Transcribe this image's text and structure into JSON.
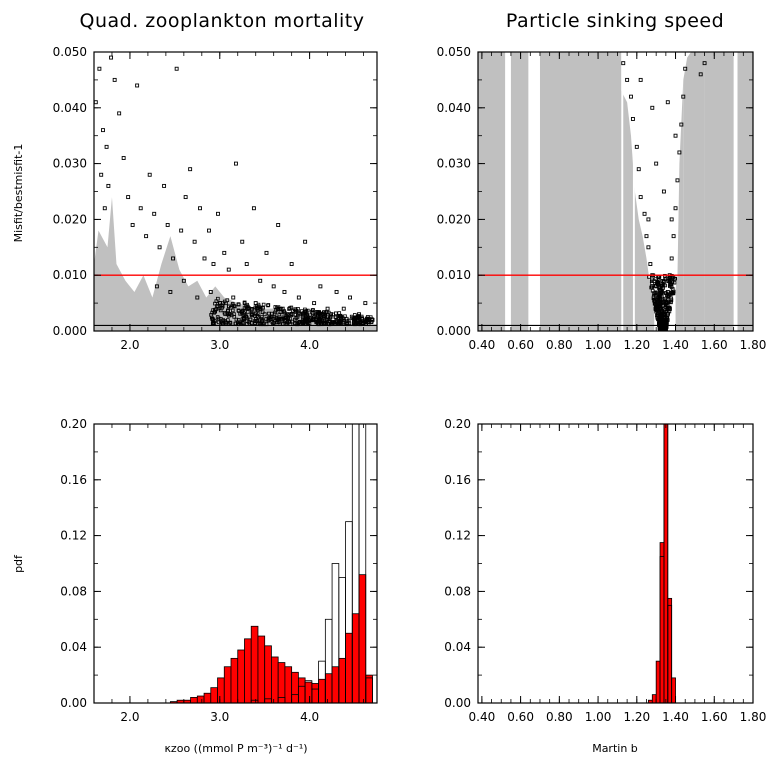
{
  "panels": {
    "top_left": {
      "title": "Quad. zooplankton mortality",
      "ylabel": "Misfit/bestmisfit-1"
    },
    "top_right": {
      "title": "Particle sinking speed"
    },
    "bottom_left": {
      "ylabel": "pdf",
      "xlabel": "κzoo ((mmol P m⁻³)⁻¹ d⁻¹)"
    },
    "bottom_right": {
      "xlabel": "Martin b"
    }
  },
  "chart_data": [
    {
      "type": "scatter",
      "title": "Quad. zooplankton mortality",
      "xlabel": "",
      "ylabel": "Misfit/bestmisfit-1",
      "xlim": [
        1.6,
        4.75
      ],
      "ylim": [
        0,
        0.05
      ],
      "xticks": [
        "2.0",
        "3.0",
        "4.0"
      ],
      "yticks": [
        "0.000",
        "0.010",
        "0.020",
        "0.030",
        "0.040",
        "0.050"
      ],
      "reference_line": {
        "y": 0.01,
        "color": "#ff0000"
      },
      "baseline": 0.001,
      "shaded_envelope_color": "#c0c0c0",
      "envelope": [
        [
          1.6,
          0.012
        ],
        [
          1.65,
          0.018
        ],
        [
          1.75,
          0.015
        ],
        [
          1.8,
          0.024
        ],
        [
          1.85,
          0.012
        ],
        [
          1.95,
          0.009
        ],
        [
          2.05,
          0.007
        ],
        [
          2.15,
          0.01
        ],
        [
          2.25,
          0.006
        ],
        [
          2.35,
          0.012
        ],
        [
          2.45,
          0.017
        ],
        [
          2.55,
          0.011
        ],
        [
          2.65,
          0.008
        ],
        [
          2.75,
          0.009
        ],
        [
          2.85,
          0.006
        ],
        [
          2.95,
          0.008
        ],
        [
          3.05,
          0.006
        ],
        [
          3.2,
          0.005
        ],
        [
          3.4,
          0.004
        ],
        [
          3.6,
          0.004
        ],
        [
          3.8,
          0.003
        ],
        [
          4.0,
          0.002
        ],
        [
          4.2,
          0.0015
        ],
        [
          4.5,
          0.0012
        ],
        [
          4.75,
          0.0012
        ]
      ],
      "points": [
        [
          1.62,
          0.041
        ],
        [
          1.66,
          0.047
        ],
        [
          1.7,
          0.036
        ],
        [
          1.74,
          0.033
        ],
        [
          1.79,
          0.049
        ],
        [
          1.68,
          0.028
        ],
        [
          1.76,
          0.026
        ],
        [
          1.83,
          0.045
        ],
        [
          1.72,
          0.022
        ],
        [
          1.88,
          0.039
        ],
        [
          1.93,
          0.031
        ],
        [
          1.98,
          0.024
        ],
        [
          2.03,
          0.019
        ],
        [
          2.08,
          0.044
        ],
        [
          2.12,
          0.022
        ],
        [
          2.18,
          0.017
        ],
        [
          2.22,
          0.028
        ],
        [
          2.27,
          0.021
        ],
        [
          2.33,
          0.015
        ],
        [
          2.38,
          0.026
        ],
        [
          2.42,
          0.019
        ],
        [
          2.48,
          0.013
        ],
        [
          2.52,
          0.047
        ],
        [
          2.57,
          0.018
        ],
        [
          2.62,
          0.024
        ],
        [
          2.67,
          0.029
        ],
        [
          2.72,
          0.016
        ],
        [
          2.78,
          0.022
        ],
        [
          2.83,
          0.013
        ],
        [
          2.88,
          0.018
        ],
        [
          2.93,
          0.012
        ],
        [
          2.98,
          0.021
        ],
        [
          3.05,
          0.014
        ],
        [
          3.1,
          0.011
        ],
        [
          3.18,
          0.03
        ],
        [
          3.25,
          0.016
        ],
        [
          3.3,
          0.012
        ],
        [
          3.38,
          0.022
        ],
        [
          3.45,
          0.009
        ],
        [
          3.52,
          0.014
        ],
        [
          3.6,
          0.008
        ],
        [
          3.65,
          0.019
        ],
        [
          3.72,
          0.007
        ],
        [
          3.8,
          0.012
        ],
        [
          3.88,
          0.006
        ],
        [
          3.95,
          0.016
        ],
        [
          4.05,
          0.005
        ],
        [
          4.12,
          0.008
        ],
        [
          4.2,
          0.004
        ],
        [
          4.3,
          0.007
        ],
        [
          4.38,
          0.004
        ],
        [
          4.45,
          0.006
        ],
        [
          4.55,
          0.003
        ],
        [
          4.62,
          0.005
        ],
        [
          4.7,
          0.002
        ],
        [
          2.3,
          0.008
        ],
        [
          2.45,
          0.007
        ],
        [
          2.6,
          0.009
        ],
        [
          2.75,
          0.006
        ],
        [
          2.9,
          0.007
        ],
        [
          3.0,
          0.005
        ],
        [
          3.15,
          0.006
        ],
        [
          3.3,
          0.004
        ],
        [
          3.4,
          0.005
        ],
        [
          3.5,
          0.003
        ],
        [
          3.7,
          0.004
        ],
        [
          3.9,
          0.003
        ],
        [
          4.1,
          0.002
        ],
        [
          4.35,
          0.0025
        ],
        [
          4.6,
          0.0015
        ]
      ],
      "dense_cluster": {
        "x_range": [
          2.9,
          4.7
        ],
        "y_range": [
          0.0012,
          0.006
        ],
        "count": 500
      }
    },
    {
      "type": "scatter",
      "title": "Particle sinking speed",
      "xlabel": "",
      "ylabel": "",
      "xlim": [
        0.38,
        1.8
      ],
      "ylim": [
        0,
        0.05
      ],
      "xticks": [
        "0.40",
        "0.60",
        "0.80",
        "1.00",
        "1.20",
        "1.40",
        "1.60",
        "1.80"
      ],
      "yticks": [
        "0.000",
        "0.010",
        "0.020",
        "0.030",
        "0.040",
        "0.050"
      ],
      "reference_line": {
        "y": 0.01,
        "color": "#ff0000"
      },
      "baseline": 0.001,
      "shaded_envelope_color": "#c0c0c0",
      "gray_bands": [
        [
          0.38,
          0.52
        ],
        [
          0.55,
          0.64
        ],
        [
          0.7,
          1.12
        ],
        [
          1.13,
          1.18
        ],
        [
          1.19,
          1.29
        ],
        [
          1.4,
          1.44
        ],
        [
          1.44,
          1.55
        ],
        [
          1.55,
          1.7
        ],
        [
          1.72,
          1.8
        ]
      ],
      "white_gaps": [
        [
          0.52,
          0.55
        ],
        [
          0.64,
          0.7
        ],
        [
          1.7,
          1.72
        ]
      ],
      "envelope": [
        [
          1.12,
          0.05
        ],
        [
          1.12,
          0.043
        ],
        [
          1.15,
          0.041
        ],
        [
          1.17,
          0.035
        ],
        [
          1.19,
          0.025
        ],
        [
          1.21,
          0.02
        ],
        [
          1.23,
          0.017
        ],
        [
          1.25,
          0.013
        ],
        [
          1.27,
          0.008
        ],
        [
          1.29,
          0.004
        ],
        [
          1.31,
          0.002
        ],
        [
          1.33,
          0.0
        ],
        [
          1.35,
          0.0
        ],
        [
          1.37,
          0.002
        ],
        [
          1.39,
          0.005
        ],
        [
          1.41,
          0.01
        ],
        [
          1.42,
          0.03
        ],
        [
          1.44,
          0.045
        ],
        [
          1.46,
          0.049
        ],
        [
          1.48,
          0.05
        ]
      ],
      "points": [
        [
          1.13,
          0.048
        ],
        [
          1.15,
          0.045
        ],
        [
          1.17,
          0.042
        ],
        [
          1.18,
          0.038
        ],
        [
          1.2,
          0.033
        ],
        [
          1.21,
          0.029
        ],
        [
          1.22,
          0.024
        ],
        [
          1.24,
          0.021
        ],
        [
          1.25,
          0.017
        ],
        [
          1.26,
          0.015
        ],
        [
          1.27,
          0.012
        ],
        [
          1.28,
          0.01
        ],
        [
          1.3,
          0.008
        ],
        [
          1.31,
          0.006
        ],
        [
          1.32,
          0.004
        ],
        [
          1.33,
          0.002
        ],
        [
          1.34,
          0.003
        ],
        [
          1.35,
          0.005
        ],
        [
          1.36,
          0.007
        ],
        [
          1.37,
          0.01
        ],
        [
          1.38,
          0.013
        ],
        [
          1.39,
          0.017
        ],
        [
          1.4,
          0.022
        ],
        [
          1.41,
          0.027
        ],
        [
          1.42,
          0.032
        ],
        [
          1.43,
          0.037
        ],
        [
          1.44,
          0.042
        ],
        [
          1.45,
          0.047
        ],
        [
          1.22,
          0.045
        ],
        [
          1.28,
          0.04
        ],
        [
          1.36,
          0.041
        ],
        [
          1.4,
          0.035
        ],
        [
          1.3,
          0.03
        ],
        [
          1.34,
          0.025
        ],
        [
          1.26,
          0.02
        ],
        [
          1.38,
          0.02
        ],
        [
          1.53,
          0.046
        ],
        [
          1.55,
          0.048
        ]
      ],
      "dense_cluster": {
        "x_range": [
          1.26,
          1.4
        ],
        "y_range": [
          0.0,
          0.01
        ],
        "count": 400
      }
    },
    {
      "type": "bar",
      "xlabel": "κzoo ((mmol P m⁻³)⁻¹ d⁻¹)",
      "ylabel": "pdf",
      "xlim": [
        1.6,
        4.75
      ],
      "ylim": [
        0,
        0.2
      ],
      "xticks": [
        "2.0",
        "3.0",
        "4.0"
      ],
      "yticks": [
        "0.00",
        "0.04",
        "0.08",
        "0.12",
        "0.16",
        "0.20"
      ],
      "bin_width": 0.075,
      "series": [
        {
          "fill": "#ff0000",
          "bins": [
            [
              2.45,
              0.001
            ],
            [
              2.525,
              0.002
            ],
            [
              2.6,
              0.002
            ],
            [
              2.675,
              0.004
            ],
            [
              2.75,
              0.005
            ],
            [
              2.825,
              0.007
            ],
            [
              2.9,
              0.011
            ],
            [
              2.975,
              0.018
            ],
            [
              3.05,
              0.026
            ],
            [
              3.125,
              0.032
            ],
            [
              3.2,
              0.038
            ],
            [
              3.275,
              0.046
            ],
            [
              3.35,
              0.055
            ],
            [
              3.425,
              0.048
            ],
            [
              3.5,
              0.041
            ],
            [
              3.575,
              0.033
            ],
            [
              3.65,
              0.029
            ],
            [
              3.725,
              0.026
            ],
            [
              3.8,
              0.022
            ],
            [
              3.875,
              0.018
            ],
            [
              3.95,
              0.015
            ],
            [
              4.025,
              0.014
            ],
            [
              4.1,
              0.017
            ],
            [
              4.175,
              0.021
            ],
            [
              4.25,
              0.026
            ],
            [
              4.325,
              0.032
            ],
            [
              4.4,
              0.05
            ],
            [
              4.475,
              0.064
            ],
            [
              4.55,
              0.092
            ],
            [
              4.625,
              0.02
            ]
          ]
        },
        {
          "fill": "none",
          "bins": [
            [
              3.35,
              0.002
            ],
            [
              3.5,
              0.003
            ],
            [
              3.65,
              0.004
            ],
            [
              3.8,
              0.006
            ],
            [
              3.875,
              0.012
            ],
            [
              3.95,
              0.016
            ],
            [
              4.025,
              0.01
            ],
            [
              4.1,
              0.03
            ],
            [
              4.175,
              0.06
            ],
            [
              4.25,
              0.1
            ],
            [
              4.325,
              0.09
            ],
            [
              4.4,
              0.13
            ],
            [
              4.475,
              0.2
            ],
            [
              4.55,
              0.2
            ],
            [
              4.625,
              0.018
            ]
          ]
        }
      ]
    },
    {
      "type": "bar",
      "xlabel": "Martin b",
      "ylabel": "",
      "xlim": [
        0.38,
        1.8
      ],
      "ylim": [
        0,
        0.2
      ],
      "xticks": [
        "0.40",
        "0.60",
        "0.80",
        "1.00",
        "1.20",
        "1.40",
        "1.60",
        "1.80"
      ],
      "yticks": [
        "0.00",
        "0.04",
        "0.08",
        "0.12",
        "0.16",
        "0.20"
      ],
      "bin_width": 0.02,
      "series": [
        {
          "fill": "#ff0000",
          "bins": [
            [
              1.26,
              0.002
            ],
            [
              1.28,
              0.006
            ],
            [
              1.3,
              0.03
            ],
            [
              1.32,
              0.115
            ],
            [
              1.34,
              0.2
            ],
            [
              1.36,
              0.075
            ],
            [
              1.38,
              0.018
            ]
          ]
        },
        {
          "fill": "none",
          "bins": [
            [
              1.32,
              0.105
            ],
            [
              1.34,
              0.2
            ],
            [
              1.36,
              0.07
            ]
          ]
        }
      ]
    }
  ]
}
